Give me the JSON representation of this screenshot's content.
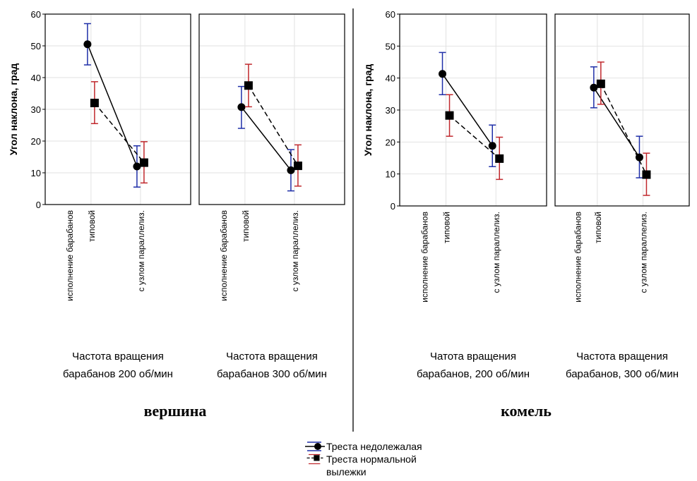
{
  "chart_data": {
    "type": "line",
    "ylabel": "Угол наклона, град",
    "ylim": [
      0,
      60
    ],
    "yticks": [
      "0",
      "10",
      "20",
      "30",
      "40",
      "50",
      "60"
    ],
    "categories": [
      "исполнение барабанов",
      "типовой",
      "с узлом параллелиз."
    ],
    "grid": true,
    "legend": "bottom-center",
    "groups": [
      {
        "group_label": "вершина",
        "panels": [
          {
            "title": "Частота вращения\nбарабанов 200 об/мин",
            "series": [
              {
                "name": "Треста недолежалая",
                "x": [
                  "типовой",
                  "с узлом параллелиз."
                ],
                "mean": [
                  50.5,
                  12.0
                ],
                "lower": [
                  44.0,
                  5.5
                ],
                "upper": [
                  57.0,
                  18.5
                ]
              },
              {
                "name": "Треста нормальной вылежки",
                "x": [
                  "типовой",
                  "с узлом параллелиз."
                ],
                "mean": [
                  32.0,
                  13.2
                ],
                "lower": [
                  25.5,
                  6.8
                ],
                "upper": [
                  38.7,
                  19.8
                ]
              }
            ]
          },
          {
            "title": "Частота вращения\nбарабанов 300 об/мин",
            "series": [
              {
                "name": "Треста недолежалая",
                "x": [
                  "типовой",
                  "с узлом параллелиз."
                ],
                "mean": [
                  30.7,
                  10.8
                ],
                "lower": [
                  24.0,
                  4.3
                ],
                "upper": [
                  37.2,
                  17.3
                ]
              },
              {
                "name": "Треста нормальной вылежки",
                "x": [
                  "типовой",
                  "с узлом параллелиз."
                ],
                "mean": [
                  37.5,
                  12.2
                ],
                "lower": [
                  30.8,
                  5.8
                ],
                "upper": [
                  44.2,
                  18.8
                ]
              }
            ]
          }
        ]
      },
      {
        "group_label": "комель",
        "panels": [
          {
            "title": "Чатота вращения\nбарабанов, 200 об/мин",
            "series": [
              {
                "name": "Треста недолежалая",
                "x": [
                  "типовой",
                  "с узлом параллелиз."
                ],
                "mean": [
                  41.3,
                  18.8
                ],
                "lower": [
                  34.8,
                  12.3
                ],
                "upper": [
                  48.0,
                  25.3
                ]
              },
              {
                "name": "Треста нормальной вылежки",
                "x": [
                  "типовой",
                  "с узлом параллелиз."
                ],
                "mean": [
                  28.3,
                  14.8
                ],
                "lower": [
                  21.8,
                  8.3
                ],
                "upper": [
                  34.8,
                  21.5
                ]
              }
            ]
          },
          {
            "title": "Частота вращения\nбарабанов, 300 об/мин",
            "series": [
              {
                "name": "Треста недолежалая",
                "x": [
                  "типовой",
                  "с узлом параллелиз."
                ],
                "mean": [
                  37.0,
                  15.2
                ],
                "lower": [
                  30.7,
                  8.8
                ],
                "upper": [
                  43.5,
                  21.8
                ]
              },
              {
                "name": "Треста нормальной вылежки",
                "x": [
                  "типовой",
                  "с узлом параллелиз."
                ],
                "mean": [
                  38.2,
                  9.8
                ],
                "lower": [
                  31.8,
                  3.3
                ],
                "upper": [
                  45.0,
                  16.5
                ]
              }
            ]
          }
        ]
      }
    ],
    "legend_entries": [
      {
        "name": "Треста недолежалая",
        "line": "solid",
        "marker": "circle",
        "color": "#000000",
        "errcolor": "#1f2fa8"
      },
      {
        "name": "Треста нормальной вылежки",
        "name_lines": [
          "Треста нормальной",
          "вылежки"
        ],
        "line": "dashed",
        "marker": "square",
        "color": "#000000",
        "errcolor": "#c0282d"
      }
    ],
    "colors": {
      "series1_err": "#1f2fa8",
      "series2_err": "#c0282d",
      "grid": "#e2e2e2",
      "axis": "#000000"
    }
  }
}
